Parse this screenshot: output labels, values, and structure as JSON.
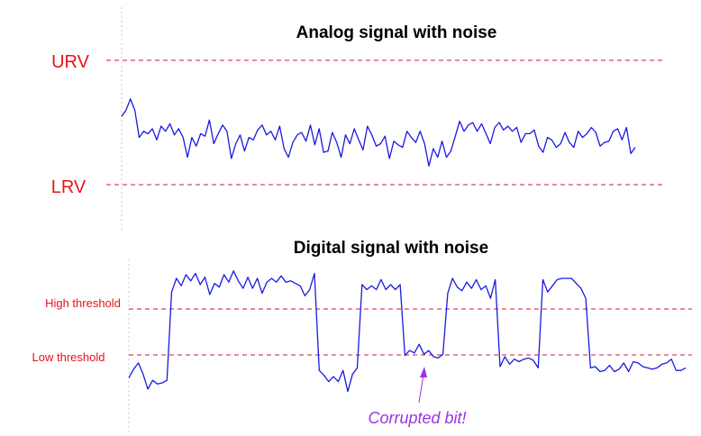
{
  "analog": {
    "title": "Analog signal with noise",
    "urv_label": "URV",
    "lrv_label": "LRV",
    "signal": [
      0.55,
      0.6,
      0.69,
      0.6,
      0.38,
      0.43,
      0.41,
      0.45,
      0.36,
      0.47,
      0.43,
      0.49,
      0.4,
      0.45,
      0.38,
      0.22,
      0.38,
      0.31,
      0.41,
      0.39,
      0.52,
      0.33,
      0.41,
      0.48,
      0.43,
      0.21,
      0.33,
      0.4,
      0.27,
      0.38,
      0.36,
      0.44,
      0.48,
      0.4,
      0.43,
      0.36,
      0.47,
      0.29,
      0.22,
      0.34,
      0.4,
      0.42,
      0.35,
      0.48,
      0.32,
      0.45,
      0.26,
      0.27,
      0.42,
      0.34,
      0.22,
      0.4,
      0.33,
      0.45,
      0.36,
      0.28,
      0.47,
      0.4,
      0.31,
      0.33,
      0.39,
      0.21,
      0.35,
      0.32,
      0.3,
      0.43,
      0.38,
      0.34,
      0.43,
      0.33,
      0.15,
      0.29,
      0.22,
      0.35,
      0.22,
      0.27,
      0.39,
      0.51,
      0.43,
      0.48,
      0.5,
      0.43,
      0.49,
      0.41,
      0.33,
      0.46,
      0.5,
      0.44,
      0.47,
      0.43,
      0.46,
      0.34,
      0.41,
      0.41,
      0.44,
      0.31,
      0.26,
      0.38,
      0.36,
      0.3,
      0.33,
      0.42,
      0.34,
      0.3,
      0.43,
      0.38,
      0.41,
      0.46,
      0.42,
      0.31,
      0.34,
      0.35,
      0.43,
      0.45,
      0.36,
      0.46,
      0.25,
      0.3
    ]
  },
  "digital": {
    "title": "Digital signal with noise",
    "high_label": "High threshold",
    "low_label": "Low threshold",
    "annotation": "Corrupted bit!",
    "signal": [
      0.12,
      0.19,
      0.24,
      0.15,
      0.03,
      0.1,
      0.07,
      0.08,
      0.1,
      0.81,
      0.92,
      0.86,
      0.95,
      0.9,
      0.96,
      0.87,
      0.93,
      0.79,
      0.88,
      0.85,
      0.95,
      0.89,
      0.98,
      0.9,
      0.84,
      0.93,
      0.84,
      0.92,
      0.8,
      0.89,
      0.92,
      0.89,
      0.94,
      0.89,
      0.9,
      0.88,
      0.86,
      0.78,
      0.83,
      0.96,
      0.18,
      0.14,
      0.09,
      0.13,
      0.09,
      0.18,
      0.01,
      0.15,
      0.2,
      0.87,
      0.83,
      0.86,
      0.83,
      0.91,
      0.83,
      0.87,
      0.83,
      0.87,
      0.3,
      0.34,
      0.32,
      0.39,
      0.31,
      0.34,
      0.29,
      0.28,
      0.31,
      0.8,
      0.92,
      0.85,
      0.82,
      0.89,
      0.84,
      0.91,
      0.83,
      0.86,
      0.76,
      0.91,
      0.21,
      0.29,
      0.23,
      0.27,
      0.25,
      0.27,
      0.28,
      0.26,
      0.2,
      0.91,
      0.81,
      0.86,
      0.91,
      0.92,
      0.92,
      0.92,
      0.88,
      0.84,
      0.76,
      0.2,
      0.21,
      0.17,
      0.18,
      0.22,
      0.17,
      0.19,
      0.24,
      0.17,
      0.25,
      0.24,
      0.21,
      0.2,
      0.19,
      0.2,
      0.23,
      0.24,
      0.27,
      0.18,
      0.18,
      0.2
    ]
  },
  "colors": {
    "label_red": "#e8121c",
    "threshold_line": "#cc1d2e",
    "signal": "#1a1ae0",
    "annotation": "#9a33e0",
    "axis": "#c8c8c8"
  }
}
